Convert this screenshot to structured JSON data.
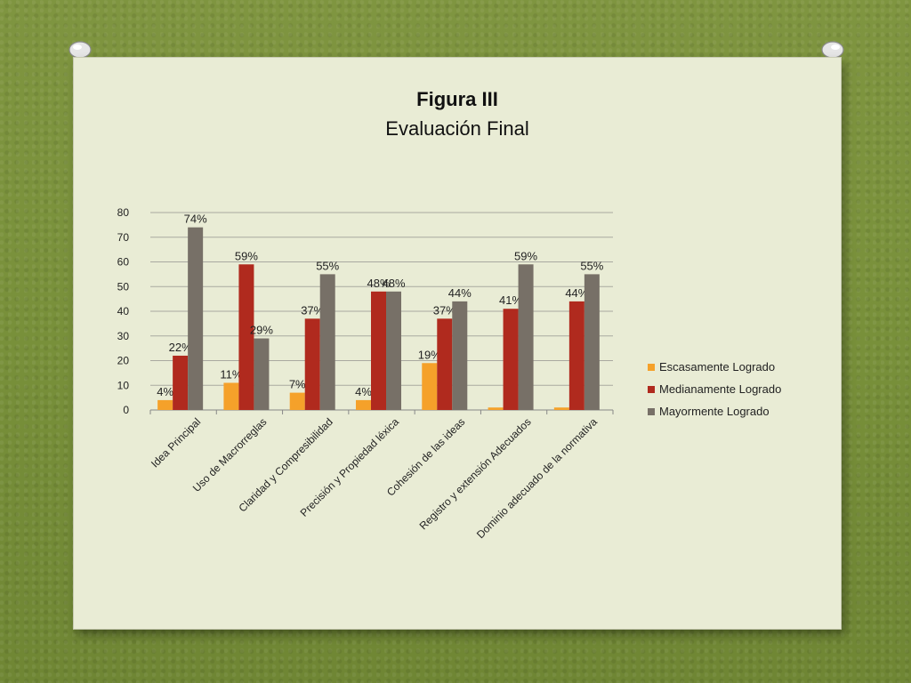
{
  "chart_data": {
    "type": "bar",
    "title": "Figura  III",
    "subtitle": "Evaluación Final",
    "categories": [
      "Idea Principal",
      "Uso de Macrorreglas",
      "Claridad y Compresibilidad",
      "Precisión  y Propiedad léxica",
      "Cohesión de las ideas",
      "Registro y extensión Adecuados",
      "Dominio adecuado de la normativa"
    ],
    "series": [
      {
        "name": "Escasamente Logrado",
        "color": "#f5a12a",
        "values": [
          4,
          11,
          7,
          4,
          19,
          1,
          1
        ],
        "labels": [
          "4%",
          "11%",
          "7%",
          "4%",
          "19%",
          "",
          ""
        ]
      },
      {
        "name": "Medianamente Logrado",
        "color": "#b02a1e",
        "values": [
          22,
          59,
          37,
          48,
          37,
          41,
          44
        ],
        "labels": [
          "22%",
          "59%",
          "37%",
          "48%",
          "37%",
          "41%",
          "44%"
        ]
      },
      {
        "name": "Mayormente Logrado",
        "color": "#777067",
        "values": [
          74,
          29,
          55,
          48,
          44,
          59,
          55
        ],
        "labels": [
          "74%",
          "29%",
          "55%",
          "48%",
          "44%",
          "59%",
          "55%"
        ]
      }
    ],
    "ylim": [
      0,
      80
    ],
    "yticks": [
      "0",
      "10",
      "20",
      "30",
      "40",
      "50",
      "60",
      "70",
      "80"
    ],
    "grid": true,
    "legend": "right"
  }
}
